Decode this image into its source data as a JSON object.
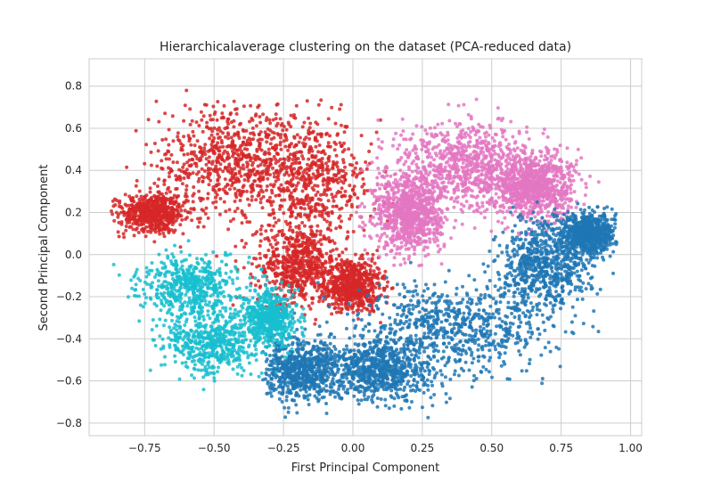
{
  "chart_data": {
    "type": "scatter",
    "title": "Hierarchicalaverage clustering on the dataset (PCA-reduced data)",
    "xlabel": "First Principal Component",
    "ylabel": "Second Principal Component",
    "xlim": [
      -0.95,
      1.04
    ],
    "ylim": [
      -0.86,
      0.93
    ],
    "xticks": [
      -0.75,
      -0.5,
      -0.25,
      0.0,
      0.25,
      0.5,
      0.75,
      1.0
    ],
    "xtick_labels": [
      "−0.75",
      "−0.50",
      "−0.25",
      "0.00",
      "0.25",
      "0.50",
      "0.75",
      "1.00"
    ],
    "yticks": [
      -0.8,
      -0.6,
      -0.4,
      -0.2,
      0.0,
      0.2,
      0.4,
      0.6,
      0.8
    ],
    "ytick_labels": [
      "−0.8",
      "−0.6",
      "−0.4",
      "−0.2",
      "0.0",
      "0.2",
      "0.4",
      "0.6",
      "0.8"
    ],
    "grid": true,
    "legend": "none",
    "clusters": [
      {
        "color": "#d62728",
        "approx_points": 3200,
        "x_range": [
          -0.87,
          0.15
        ],
        "y_range": [
          -0.33,
          0.84
        ],
        "centroid": [
          -0.38,
          0.32
        ],
        "description_regions": [
          {
            "center": [
              -0.45,
              0.45
            ],
            "spread": [
              0.22,
              0.2
            ]
          },
          {
            "center": [
              -0.15,
              0.35
            ],
            "spread": [
              0.2,
              0.25
            ]
          },
          {
            "center": [
              -0.2,
              -0.05
            ],
            "spread": [
              0.12,
              0.15
            ]
          },
          {
            "center": [
              -0.72,
              0.2
            ],
            "spread": [
              0.1,
              0.08
            ]
          },
          {
            "center": [
              0.0,
              -0.15
            ],
            "spread": [
              0.08,
              0.1
            ]
          }
        ]
      },
      {
        "color": "#e377c2",
        "approx_points": 2600,
        "x_range": [
          0.0,
          0.9
        ],
        "y_range": [
          -0.1,
          0.84
        ],
        "centroid": [
          0.42,
          0.38
        ],
        "description_regions": [
          {
            "center": [
              0.42,
              0.42
            ],
            "spread": [
              0.22,
              0.18
            ]
          },
          {
            "center": [
              0.65,
              0.32
            ],
            "spread": [
              0.12,
              0.12
            ]
          },
          {
            "center": [
              0.2,
              0.2
            ],
            "spread": [
              0.1,
              0.15
            ]
          }
        ]
      },
      {
        "color": "#1f77b4",
        "approx_points": 3600,
        "x_range": [
          -0.33,
          0.95
        ],
        "y_range": [
          -0.78,
          0.25
        ],
        "centroid": [
          0.35,
          -0.35
        ],
        "description_regions": [
          {
            "center": [
              0.35,
              -0.35
            ],
            "spread": [
              0.28,
              0.18
            ]
          },
          {
            "center": [
              0.1,
              -0.55
            ],
            "spread": [
              0.15,
              0.12
            ]
          },
          {
            "center": [
              0.7,
              -0.05
            ],
            "spread": [
              0.14,
              0.18
            ]
          },
          {
            "center": [
              -0.18,
              -0.55
            ],
            "spread": [
              0.12,
              0.12
            ]
          },
          {
            "center": [
              0.85,
              0.1
            ],
            "spread": [
              0.08,
              0.08
            ]
          }
        ]
      },
      {
        "color": "#17becf",
        "approx_points": 1600,
        "x_range": [
          -0.87,
          -0.16
        ],
        "y_range": [
          -0.65,
          0.13
        ],
        "centroid": [
          -0.52,
          -0.28
        ],
        "description_regions": [
          {
            "center": [
              -0.58,
              -0.15
            ],
            "spread": [
              0.15,
              0.12
            ]
          },
          {
            "center": [
              -0.5,
              -0.42
            ],
            "spread": [
              0.15,
              0.12
            ]
          },
          {
            "center": [
              -0.3,
              -0.3
            ],
            "spread": [
              0.08,
              0.1
            ]
          }
        ]
      }
    ]
  }
}
